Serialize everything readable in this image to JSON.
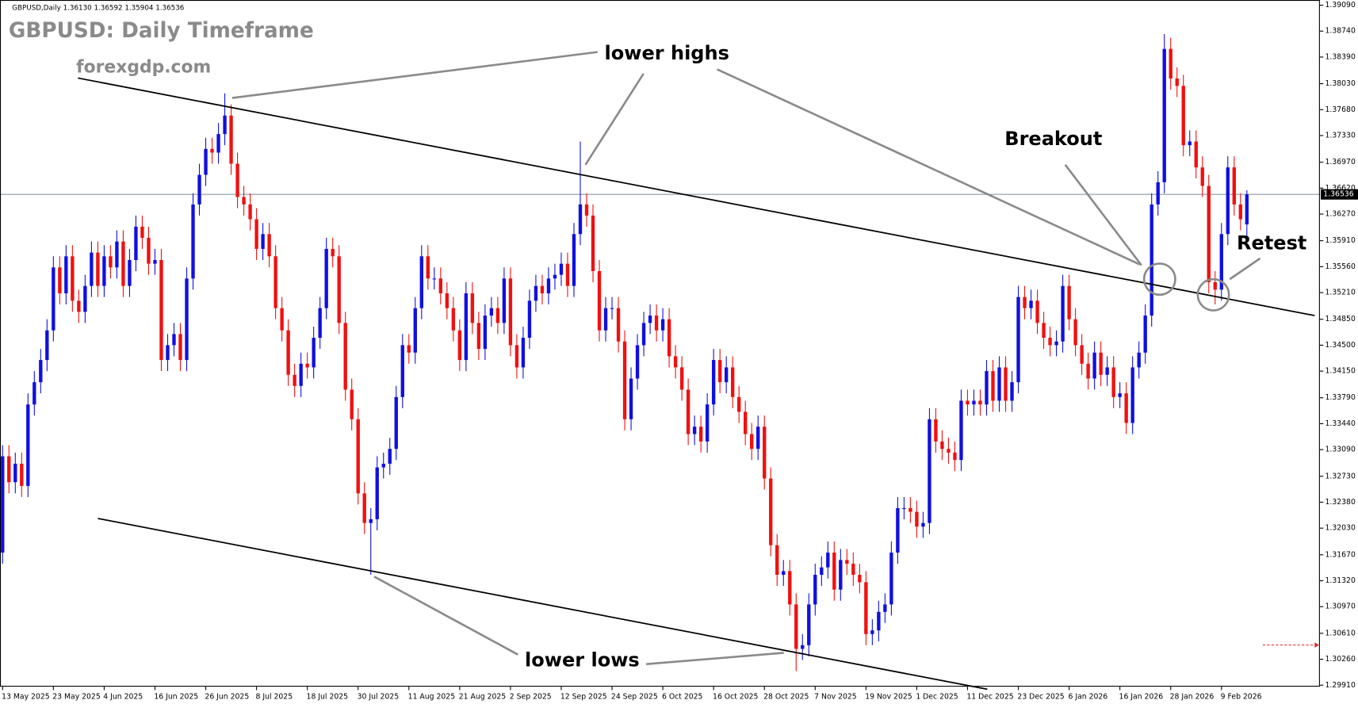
{
  "chart_data": {
    "type": "candlestick",
    "header": "GBPUSD,Daily  1.36130 1.36592 1.35904 1.36536",
    "title": "GBPUSD: Daily Timeframe",
    "subtitle": "forexgdp.com",
    "annotations": [
      "lower highs",
      "lower lows",
      "Breakout",
      "Retest"
    ],
    "up_color": "#1010e0",
    "down_color": "#f01010",
    "current_price": 1.36536,
    "categories": [
      "13 May 2025",
      null,
      null,
      null,
      null,
      null,
      null,
      null,
      "23 May 2025",
      null,
      null,
      null,
      null,
      null,
      null,
      null,
      "4 Jun 2025",
      null,
      null,
      null,
      null,
      null,
      null,
      null,
      "16 Jun 2025",
      null,
      null,
      null,
      null,
      null,
      null,
      null,
      "26 Jun 2025",
      null,
      null,
      null,
      null,
      null,
      null,
      null,
      "8 Jul 2025",
      null,
      null,
      null,
      null,
      null,
      null,
      null,
      "18 Jul 2025",
      null,
      null,
      null,
      null,
      null,
      null,
      null,
      "30 Jul 2025",
      null,
      null,
      null,
      null,
      null,
      null,
      null,
      "11 Aug 2025",
      null,
      null,
      null,
      null,
      null,
      null,
      null,
      "21 Aug 2025",
      null,
      null,
      null,
      null,
      null,
      null,
      null,
      "2 Sep 2025",
      null,
      null,
      null,
      null,
      null,
      null,
      null,
      "12 Sep 2025",
      null,
      null,
      null,
      null,
      null,
      null,
      null,
      "24 Sep 2025",
      null,
      null,
      null,
      null,
      null,
      null,
      null,
      "6 Oct 2025",
      null,
      null,
      null,
      null,
      null,
      null,
      null,
      "16 Oct 2025",
      null,
      null,
      null,
      null,
      null,
      null,
      null,
      "28 Oct 2025",
      null,
      null,
      null,
      null,
      null,
      null,
      null,
      "7 Nov 2025",
      null,
      null,
      null,
      null,
      null,
      null,
      null,
      "19 Nov 2025",
      null,
      null,
      null,
      null,
      null,
      null,
      null,
      "1 Dec 2025",
      null,
      null,
      null,
      null,
      null,
      null,
      null,
      "11 Dec 2025",
      null,
      null,
      null,
      null,
      null,
      null,
      null,
      "23 Dec 2025",
      null,
      null,
      null,
      null,
      null,
      null,
      null,
      "6 Jan 2026",
      null,
      null,
      null,
      null,
      null,
      null,
      null,
      "16 Jan 2026",
      null,
      null,
      null,
      null,
      null,
      null,
      null,
      "28 Jan 2026",
      null,
      null,
      null,
      null,
      null,
      null,
      null,
      "9 Feb 2026",
      null,
      null,
      null,
      null
    ],
    "open": [
      1.317,
      1.33,
      1.3265,
      1.329,
      1.326,
      1.337,
      1.34,
      1.343,
      1.347,
      1.3555,
      1.352,
      1.357,
      1.351,
      1.3495,
      1.353,
      1.3575,
      1.353,
      1.357,
      1.3555,
      1.359,
      1.353,
      1.3565,
      1.361,
      1.3595,
      1.356,
      1.3565,
      1.343,
      1.345,
      1.3465,
      1.343,
      1.354,
      1.364,
      1.368,
      1.3715,
      1.371,
      1.3735,
      1.376,
      1.3695,
      1.365,
      1.364,
      1.362,
      1.358,
      1.36,
      1.357,
      1.35,
      1.347,
      1.341,
      1.3395,
      1.3425,
      1.342,
      1.346,
      1.35,
      1.358,
      1.357,
      1.348,
      1.339,
      1.335,
      1.325,
      1.321,
      1.3215,
      1.3285,
      1.329,
      1.331,
      1.338,
      1.345,
      1.344,
      1.35,
      1.357,
      1.354,
      1.354,
      1.352,
      1.35,
      1.347,
      1.343,
      1.352,
      1.348,
      1.3445,
      1.349,
      1.35,
      1.348,
      1.354,
      1.345,
      1.342,
      1.346,
      1.351,
      1.353,
      1.352,
      1.354,
      1.3545,
      1.356,
      1.353,
      1.36,
      1.364,
      1.3625,
      1.355,
      1.347,
      1.35,
      1.35,
      1.3455,
      1.335,
      1.3405,
      1.345,
      1.348,
      1.349,
      1.347,
      1.3485,
      1.3435,
      1.342,
      1.339,
      1.333,
      1.334,
      1.332,
      1.337,
      1.343,
      1.34,
      1.342,
      1.338,
      1.336,
      1.333,
      1.331,
      1.334,
      1.327,
      1.318,
      1.314,
      1.3145,
      1.31,
      1.304,
      1.3045,
      1.31,
      1.314,
      1.315,
      1.317,
      1.312,
      1.316,
      1.3155,
      1.314,
      1.313,
      1.306,
      1.3065,
      1.309,
      1.31,
      1.317,
      1.323,
      1.323,
      1.3225,
      1.3205,
      1.321,
      1.335,
      1.332,
      1.331,
      1.3305,
      1.3295,
      1.3375,
      1.337,
      1.3375,
      1.337,
      1.3415,
      1.3375,
      1.342,
      1.3375,
      1.34,
      1.3515,
      1.35,
      1.351,
      1.348,
      1.346,
      1.345,
      1.3455,
      1.353,
      1.3485,
      1.345,
      1.3425,
      1.3405,
      1.344,
      1.341,
      1.342,
      1.338,
      1.3385,
      1.3345,
      1.342,
      1.344,
      1.349,
      1.364,
      1.367,
      1.385,
      1.381,
      1.38,
      1.372,
      1.3725,
      1.369,
      1.3665,
      1.3535,
      1.3525,
      1.36,
      1.369,
      1.364,
      1.3613
    ],
    "high": [
      1.3315,
      1.3315,
      1.3305,
      1.3305,
      1.3385,
      1.3415,
      1.3445,
      1.3485,
      1.357,
      1.357,
      1.3585,
      1.3585,
      1.3525,
      1.3545,
      1.359,
      1.359,
      1.3585,
      1.3585,
      1.3605,
      1.3605,
      1.358,
      1.3625,
      1.3625,
      1.361,
      1.358,
      1.358,
      1.3465,
      1.348,
      1.348,
      1.3555,
      1.3655,
      1.3695,
      1.373,
      1.373,
      1.375,
      1.379,
      1.3775,
      1.371,
      1.3665,
      1.3655,
      1.3635,
      1.3615,
      1.3615,
      1.3585,
      1.3515,
      1.3485,
      1.3425,
      1.344,
      1.344,
      1.3475,
      1.3515,
      1.3595,
      1.3595,
      1.3585,
      1.3495,
      1.3405,
      1.3365,
      1.3265,
      1.323,
      1.33,
      1.3305,
      1.3325,
      1.3395,
      1.3465,
      1.3465,
      1.3515,
      1.3585,
      1.3585,
      1.3555,
      1.3555,
      1.3535,
      1.3515,
      1.3485,
      1.3535,
      1.3535,
      1.3495,
      1.3505,
      1.3515,
      1.3515,
      1.3555,
      1.3555,
      1.3465,
      1.3475,
      1.3525,
      1.3545,
      1.3545,
      1.3555,
      1.356,
      1.3575,
      1.3575,
      1.3615,
      1.3725,
      1.3655,
      1.364,
      1.3565,
      1.3515,
      1.3515,
      1.3515,
      1.347,
      1.342,
      1.3465,
      1.3495,
      1.3505,
      1.3505,
      1.35,
      1.35,
      1.345,
      1.3435,
      1.3405,
      1.3355,
      1.3355,
      1.3385,
      1.3445,
      1.3445,
      1.3435,
      1.3435,
      1.3395,
      1.3375,
      1.3345,
      1.3355,
      1.3355,
      1.3285,
      1.3195,
      1.316,
      1.316,
      1.3115,
      1.306,
      1.3115,
      1.3155,
      1.3165,
      1.3185,
      1.3185,
      1.3175,
      1.3175,
      1.317,
      1.3155,
      1.3145,
      1.308,
      1.3105,
      1.3115,
      1.3185,
      1.3245,
      1.3245,
      1.3245,
      1.324,
      1.3225,
      1.3365,
      1.3365,
      1.3335,
      1.3325,
      1.332,
      1.339,
      1.339,
      1.339,
      1.339,
      1.343,
      1.343,
      1.3435,
      1.3435,
      1.3415,
      1.353,
      1.353,
      1.3525,
      1.3525,
      1.3495,
      1.3475,
      1.347,
      1.3545,
      1.3545,
      1.35,
      1.3465,
      1.344,
      1.3455,
      1.3455,
      1.3435,
      1.3435,
      1.34,
      1.34,
      1.3435,
      1.3455,
      1.3505,
      1.3655,
      1.3685,
      1.387,
      1.3865,
      1.3825,
      1.3815,
      1.374,
      1.374,
      1.3705,
      1.368,
      1.355,
      1.3615,
      1.3705,
      1.3705,
      1.3655,
      1.36592
    ],
    "low": [
      1.3155,
      1.325,
      1.325,
      1.3245,
      1.3245,
      1.3355,
      1.3385,
      1.3415,
      1.3455,
      1.3505,
      1.3505,
      1.3495,
      1.348,
      1.348,
      1.3515,
      1.3515,
      1.3515,
      1.354,
      1.354,
      1.3515,
      1.3515,
      1.355,
      1.358,
      1.3545,
      1.3545,
      1.3415,
      1.3415,
      1.3435,
      1.3415,
      1.3415,
      1.3525,
      1.3625,
      1.3665,
      1.3695,
      1.3695,
      1.372,
      1.368,
      1.3635,
      1.3625,
      1.3605,
      1.3565,
      1.3565,
      1.3555,
      1.3485,
      1.3455,
      1.3395,
      1.338,
      1.338,
      1.3405,
      1.3405,
      1.3445,
      1.3485,
      1.3555,
      1.3465,
      1.3375,
      1.3335,
      1.3235,
      1.3195,
      1.314,
      1.32,
      1.327,
      1.3275,
      1.3295,
      1.3365,
      1.3425,
      1.3425,
      1.3485,
      1.3525,
      1.3525,
      1.3505,
      1.3485,
      1.3455,
      1.3415,
      1.3415,
      1.3465,
      1.343,
      1.343,
      1.3475,
      1.3465,
      1.3465,
      1.3435,
      1.3405,
      1.3405,
      1.3445,
      1.3495,
      1.3505,
      1.3505,
      1.3525,
      1.353,
      1.3515,
      1.3515,
      1.3585,
      1.361,
      1.3535,
      1.3455,
      1.3455,
      1.3485,
      1.344,
      1.3335,
      1.3335,
      1.339,
      1.3435,
      1.3465,
      1.3455,
      1.3455,
      1.342,
      1.3405,
      1.3375,
      1.3315,
      1.3315,
      1.3305,
      1.3305,
      1.3355,
      1.3385,
      1.3385,
      1.3365,
      1.3345,
      1.3315,
      1.3295,
      1.3295,
      1.3255,
      1.3165,
      1.3125,
      1.3125,
      1.3085,
      1.301,
      1.3025,
      1.303,
      1.3085,
      1.3125,
      1.3135,
      1.3105,
      1.3105,
      1.314,
      1.3125,
      1.3115,
      1.3045,
      1.3045,
      1.305,
      1.3075,
      1.3085,
      1.3155,
      1.3215,
      1.321,
      1.319,
      1.319,
      1.3195,
      1.3305,
      1.3295,
      1.329,
      1.328,
      1.328,
      1.3355,
      1.3355,
      1.3355,
      1.3355,
      1.336,
      1.336,
      1.336,
      1.336,
      1.3385,
      1.3485,
      1.3485,
      1.3465,
      1.3445,
      1.3435,
      1.3435,
      1.344,
      1.347,
      1.3435,
      1.341,
      1.339,
      1.339,
      1.3395,
      1.3395,
      1.3365,
      1.3365,
      1.333,
      1.333,
      1.3405,
      1.3425,
      1.3475,
      1.3625,
      1.3655,
      1.3795,
      1.3785,
      1.3705,
      1.3705,
      1.3675,
      1.365,
      1.352,
      1.3505,
      1.351,
      1.3585,
      1.3625,
      1.3605,
      1.35904
    ],
    "close": [
      1.33,
      1.3265,
      1.329,
      1.326,
      1.337,
      1.34,
      1.343,
      1.347,
      1.3555,
      1.352,
      1.357,
      1.351,
      1.3495,
      1.353,
      1.3575,
      1.353,
      1.357,
      1.3555,
      1.359,
      1.353,
      1.3565,
      1.361,
      1.3595,
      1.356,
      1.3565,
      1.343,
      1.345,
      1.3465,
      1.343,
      1.354,
      1.364,
      1.368,
      1.3715,
      1.371,
      1.3735,
      1.376,
      1.3695,
      1.365,
      1.364,
      1.362,
      1.358,
      1.36,
      1.357,
      1.35,
      1.347,
      1.341,
      1.3395,
      1.3425,
      1.342,
      1.346,
      1.35,
      1.358,
      1.357,
      1.348,
      1.339,
      1.335,
      1.325,
      1.321,
      1.3215,
      1.3285,
      1.329,
      1.331,
      1.338,
      1.345,
      1.344,
      1.35,
      1.357,
      1.354,
      1.354,
      1.352,
      1.35,
      1.347,
      1.343,
      1.352,
      1.348,
      1.3445,
      1.349,
      1.35,
      1.348,
      1.354,
      1.345,
      1.342,
      1.346,
      1.351,
      1.353,
      1.352,
      1.354,
      1.3545,
      1.356,
      1.353,
      1.36,
      1.364,
      1.3625,
      1.355,
      1.347,
      1.35,
      1.35,
      1.3455,
      1.335,
      1.3405,
      1.345,
      1.348,
      1.349,
      1.347,
      1.3485,
      1.3435,
      1.342,
      1.339,
      1.333,
      1.334,
      1.332,
      1.337,
      1.343,
      1.34,
      1.342,
      1.338,
      1.336,
      1.333,
      1.331,
      1.334,
      1.327,
      1.318,
      1.314,
      1.3145,
      1.31,
      1.304,
      1.3045,
      1.31,
      1.314,
      1.315,
      1.317,
      1.312,
      1.316,
      1.3155,
      1.314,
      1.313,
      1.306,
      1.3065,
      1.309,
      1.31,
      1.317,
      1.323,
      1.323,
      1.3225,
      1.3205,
      1.321,
      1.335,
      1.332,
      1.331,
      1.3305,
      1.3295,
      1.3375,
      1.337,
      1.3375,
      1.337,
      1.3415,
      1.3375,
      1.342,
      1.3375,
      1.34,
      1.3515,
      1.35,
      1.351,
      1.348,
      1.346,
      1.345,
      1.3455,
      1.353,
      1.3485,
      1.345,
      1.3425,
      1.3405,
      1.344,
      1.341,
      1.342,
      1.338,
      1.3385,
      1.3345,
      1.342,
      1.344,
      1.349,
      1.364,
      1.367,
      1.385,
      1.381,
      1.38,
      1.372,
      1.3725,
      1.369,
      1.3665,
      1.3535,
      1.3525,
      1.36,
      1.369,
      1.364,
      1.362,
      1.36536
    ],
    "ylim": [
      1.2989,
      1.3916
    ],
    "yticks": [
      {
        "value": 1.3909,
        "label": "1.39090"
      },
      {
        "value": 1.3874,
        "label": "1.38740"
      },
      {
        "value": 1.3839,
        "label": "1.38390"
      },
      {
        "value": 1.3803,
        "label": "1.38030"
      },
      {
        "value": 1.3768,
        "label": "1.37680"
      },
      {
        "value": 1.3733,
        "label": "1.37330"
      },
      {
        "value": 1.3697,
        "label": "1.36970"
      },
      {
        "value": 1.3662,
        "label": "1.36620"
      },
      {
        "value": 1.3627,
        "label": "1.36270"
      },
      {
        "value": 1.3591,
        "label": "1.35910"
      },
      {
        "value": 1.3556,
        "label": "1.35560"
      },
      {
        "value": 1.3521,
        "label": "1.35210"
      },
      {
        "value": 1.3485,
        "label": "1.34850"
      },
      {
        "value": 1.345,
        "label": "1.34500"
      },
      {
        "value": 1.3415,
        "label": "1.34150"
      },
      {
        "value": 1.3379,
        "label": "1.33790"
      },
      {
        "value": 1.3344,
        "label": "1.33440"
      },
      {
        "value": 1.3309,
        "label": "1.33090"
      },
      {
        "value": 1.3273,
        "label": "1.32730"
      },
      {
        "value": 1.3238,
        "label": "1.32380"
      },
      {
        "value": 1.3203,
        "label": "1.32030"
      },
      {
        "value": 1.3167,
        "label": "1.31670"
      },
      {
        "value": 1.3132,
        "label": "1.31320"
      },
      {
        "value": 1.3097,
        "label": "1.30970"
      },
      {
        "value": 1.3061,
        "label": "1.30610"
      },
      {
        "value": 1.3026,
        "label": "1.30260"
      },
      {
        "value": 1.2991,
        "label": "1.29910"
      }
    ],
    "grid": false
  }
}
